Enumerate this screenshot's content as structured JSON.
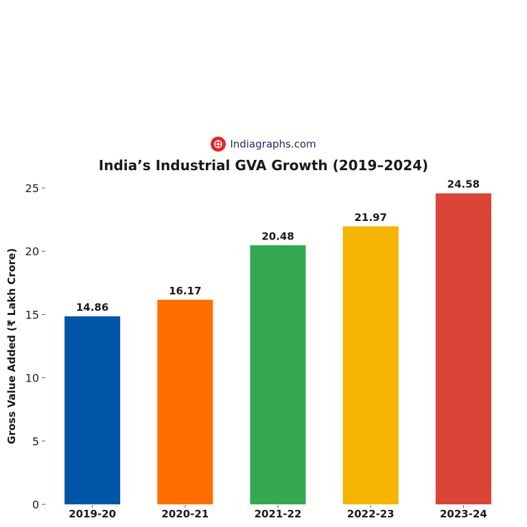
{
  "brand": {
    "name": "Indiagraphs.com"
  },
  "chart_data": {
    "type": "bar",
    "title": "India’s Industrial GVA Growth (2019–2024)",
    "xlabel": "",
    "ylabel": "Gross Value Added (₹ Lakh Crore)",
    "categories": [
      "2019-20",
      "2020-21",
      "2021-22",
      "2022-23",
      "2023-24"
    ],
    "values": [
      14.86,
      16.17,
      20.48,
      21.97,
      24.58
    ],
    "value_labels": [
      "14.86",
      "16.17",
      "20.48",
      "21.97",
      "24.58"
    ],
    "colors": [
      "#0056a6",
      "#ff6f00",
      "#34a853",
      "#f4b400",
      "#db4437"
    ],
    "ylim": [
      0,
      25
    ],
    "yticks": [
      0,
      5,
      10,
      15,
      20,
      25
    ],
    "ytick_labels": [
      "0",
      "5",
      "10",
      "15",
      "20",
      "25"
    ],
    "grid": false
  }
}
